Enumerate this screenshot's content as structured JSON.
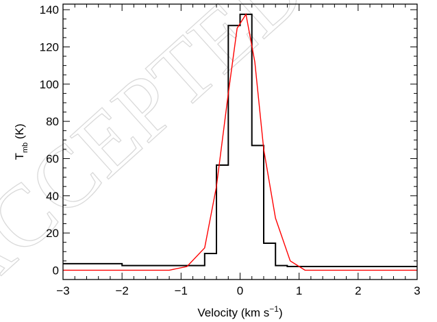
{
  "watermark_text": "ACCEPTED MANUSCRIPT",
  "chart_data": {
    "type": "line",
    "xlabel": "Velocity (km s",
    "xlabel_sup": "−1",
    "xlabel_tail": ")",
    "ylabel": "T",
    "ylabel_sub": "mb",
    "ylabel_tail": " (K)",
    "xlim": [
      -3,
      3
    ],
    "ylim": [
      -5,
      143
    ],
    "xticks": [
      -3,
      -2,
      -1,
      0,
      1,
      2,
      3
    ],
    "xtick_labels": [
      "−3",
      "−2",
      "−1",
      "0",
      "1",
      "2",
      "3"
    ],
    "yticks": [
      0,
      20,
      40,
      60,
      80,
      100,
      120,
      140
    ],
    "ytick_labels": [
      "0",
      "20",
      "40",
      "60",
      "80",
      "100",
      "120",
      "140"
    ],
    "series": [
      {
        "style": "histogram",
        "color": "#000000",
        "bin_edges": [
          -3,
          -2,
          -1,
          -0.8,
          -0.6,
          -0.4,
          -0.2,
          0,
          0.2,
          0.4,
          0.6,
          0.8,
          1.0,
          2.0,
          3.0
        ],
        "values": [
          3.5,
          2.5,
          2.5,
          2.5,
          9,
          56.5,
          131.5,
          137.5,
          67,
          14.5,
          2.5,
          2,
          2,
          2
        ]
      },
      {
        "style": "line",
        "color": "#ff0000",
        "x": [
          -3,
          -1.2,
          -0.9,
          -0.6,
          -0.4,
          -0.2,
          -0.05,
          0.1,
          0.25,
          0.4,
          0.6,
          0.85,
          1.1,
          3
        ],
        "y": [
          0,
          0,
          2,
          12,
          45,
          95,
          130,
          137.5,
          112,
          65,
          28,
          5,
          0,
          0
        ]
      }
    ]
  }
}
